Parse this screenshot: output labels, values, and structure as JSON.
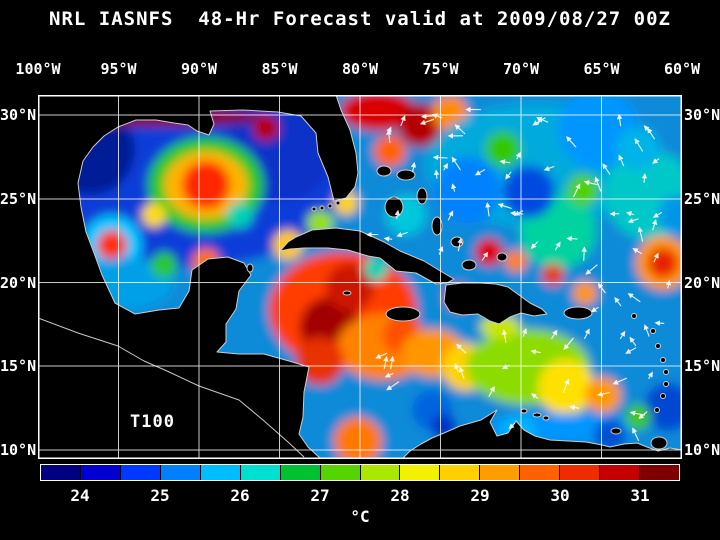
{
  "title": "NRL IASNFS  48-Hr Forecast valid at 2009/08/27 00Z",
  "map": {
    "field_label": "T100",
    "lon_ticks": [
      "100°W",
      "95°W",
      "90°W",
      "85°W",
      "80°W",
      "75°W",
      "70°W",
      "65°W",
      "60°W"
    ],
    "lat_ticks": [
      "30°N",
      "25°N",
      "20°N",
      "15°N",
      "10°N"
    ]
  },
  "colorbar": {
    "tick_labels": [
      "24",
      "25",
      "26",
      "27",
      "28",
      "29",
      "30",
      "31"
    ],
    "unit_label": "°C",
    "segment_colors": [
      "#000080",
      "#0000d0",
      "#0038ff",
      "#0080ff",
      "#00bdff",
      "#00e0d0",
      "#00c230",
      "#55d400",
      "#aae800",
      "#f2f200",
      "#ffd000",
      "#ff9c00",
      "#ff6000",
      "#ee2c00",
      "#c40000",
      "#7e0000"
    ]
  },
  "colors": {
    "background": "#000000",
    "text": "#ffffff",
    "grid": "#ffffff",
    "coastline": "#cccccc"
  },
  "chart_data": {
    "type": "heatmap",
    "title": "NRL IASNFS 48-Hr Forecast valid at 2009/08/27 00Z",
    "field": "T100",
    "units": "°C",
    "x_axis": {
      "label": "longitude",
      "ticks": [
        "100°W",
        "95°W",
        "90°W",
        "85°W",
        "80°W",
        "75°W",
        "70°W",
        "65°W",
        "60°W"
      ],
      "range_deg_west": [
        100,
        60
      ]
    },
    "y_axis": {
      "label": "latitude",
      "ticks": [
        "30°N",
        "25°N",
        "20°N",
        "15°N",
        "10°N"
      ],
      "range_deg_north": [
        10,
        30
      ]
    },
    "colorbar": {
      "tick_values": [
        24,
        25,
        26,
        27,
        28,
        29,
        30,
        31
      ],
      "range_c": [
        23.5,
        31.5
      ],
      "segment_step_c": 0.5,
      "position": "bottom"
    },
    "grid": true,
    "overlays": [
      "white 5-degree lat/lon grid",
      "white current vector arrows over Atlantic and eastern Caribbean",
      "black land mask with light coastlines"
    ],
    "estimated_grid": {
      "lons_deg_west": [
        95,
        90,
        85,
        80,
        75,
        70,
        65,
        60
      ],
      "lats_deg_north": [
        30,
        25,
        20,
        15,
        10
      ],
      "values_c": [
        [
          null,
          null,
          26.0,
          29.0,
          25.5,
          25.5,
          25.0,
          25.5
        ],
        [
          25.0,
          29.0,
          25.5,
          27.0,
          25.5,
          25.0,
          26.0,
          25.5
        ],
        [
          26.5,
          null,
          29.0,
          29.5,
          28.5,
          26.5,
          26.5,
          26.0
        ],
        [
          null,
          null,
          29.0,
          28.5,
          28.0,
          27.5,
          27.0,
          26.5
        ],
        [
          null,
          null,
          null,
          28.0,
          26.5,
          25.0,
          25.5,
          25.5
        ]
      ],
      "note": "Values estimated from fill colors; warm (>29°C) Loop Current eddy in the central Gulf of Mexico and very warm western Caribbean; cooler (<25.5°C) water over much of the Gulf, the open Atlantic and off the Venezuelan coast."
    }
  }
}
